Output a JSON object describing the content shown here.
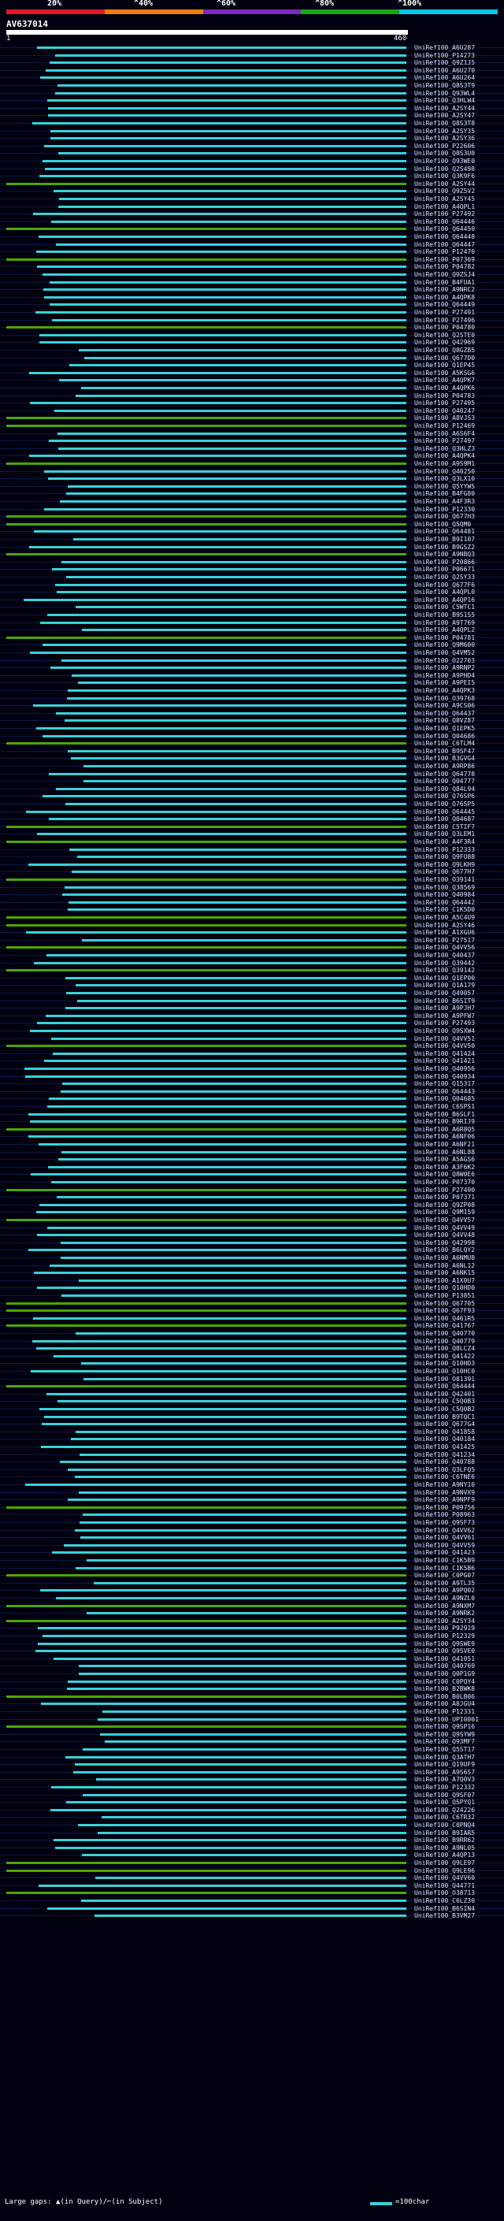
{
  "header": {
    "percent_labels": [
      "20%",
      "^40%",
      "^60%",
      "^80%",
      "^100%"
    ],
    "query_id": "AV637014",
    "range_start": "1",
    "range_end": "460"
  },
  "colors": {
    "identity_bands": [
      "#e0182a",
      "#f07a10",
      "#7a2bb8",
      "#1aa61a",
      "#00c8e6"
    ],
    "high_identity": "#39d1d9",
    "medium_identity": "#4aa800",
    "low_identity": "#7a7a7a",
    "query_bar": "#ffffff"
  },
  "hits": [
    "UniRef100_A6U287",
    "UniRef100_P14273",
    "UniRef100_Q9Z1J5",
    "UniRef100_A6U270",
    "UniRef100_A6U264",
    "UniRef100_Q8S3T9",
    "UniRef100_Q93WL4",
    "UniRef100_Q3HLW4",
    "UniRef100_A2SY44",
    "UniRef100_A2SY47",
    "UniRef100_Q8S3T8",
    "UniRef100_A2SY35",
    "UniRef100_A2SY36",
    "UniRef100_P22606",
    "UniRef100_Q8S3U0",
    "UniRef100_Q93WE0",
    "UniRef100_Q2S498",
    "UniRef100_Q3K9F6",
    "UniRef100_A2SY44",
    "UniRef100_Q9Z5V2",
    "UniRef100_A2SY45",
    "UniRef100_A4QPL1",
    "UniRef100_P27492",
    "UniRef100_Q64446",
    "UniRef100_Q64450",
    "UniRef100_Q64448",
    "UniRef100_Q64447",
    "UniRef100_P12470",
    "UniRef100_P07369",
    "UniRef100_P04782",
    "UniRef100_Q9ZSJ4",
    "UniRef100_B4FUA1",
    "UniRef100_A9NRC2",
    "UniRef100_A4QPK8",
    "UniRef100_Q64449",
    "UniRef100_P27491",
    "UniRef100_P27496",
    "UniRef100_P04780",
    "UniRef100_Q2STE0",
    "UniRef100_Q42969",
    "UniRef100_Q8GZB5",
    "UniRef100_Q677D0",
    "UniRef100_Q1EP45",
    "UniRef100_A5KSG6",
    "UniRef100_A4QPK7",
    "UniRef100_A4QPK6",
    "UniRef100_P04783",
    "UniRef100_P27495",
    "UniRef100_Q40247",
    "UniRef100_A8VJS3",
    "UniRef100_P12469",
    "UniRef100_A6S6F4",
    "UniRef100_P27497",
    "UniRef100_Q3HLZ3",
    "UniRef100_A4QPK4",
    "UniRef100_A9S9M1",
    "UniRef100_Q40250",
    "UniRef100_Q3LX10",
    "UniRef100_Q5YYW5",
    "UniRef100_B4FG80",
    "UniRef100_A4F3R3",
    "UniRef100_P12330",
    "UniRef100_Q677H3",
    "UniRef100_Q5QM0",
    "UniRef100_Q64481",
    "UniRef100_B9I107",
    "UniRef100_B9GSZ2",
    "UniRef100_A9NBQ3",
    "UniRef100_P20866",
    "UniRef100_P06671",
    "UniRef100_Q2SY33",
    "UniRef100_Q677F6",
    "UniRef100_A4QPL0",
    "UniRef100_A4QP16",
    "UniRef100_C5WTC1",
    "UniRef100_B9S155",
    "UniRef100_A9T769",
    "UniRef100_A4QPL2",
    "UniRef100_P04781",
    "UniRef100_Q9M600",
    "UniRef100_Q4VM52",
    "UniRef100_O22703",
    "UniRef100_A9RNP2",
    "UniRef100_A9PHD4",
    "UniRef100_A9PEI5",
    "UniRef100_A4QPK3",
    "UniRef100_O39768",
    "UniRef100_A9CS06",
    "UniRef100_Q64437",
    "UniRef100_Q8VZ87",
    "UniRef100_Q1EPK5",
    "UniRef100_Q04686",
    "UniRef100_C6TLM4",
    "UniRef100_B9SF47",
    "UniRef100_B3GVG4",
    "UniRef100_A9RP86",
    "UniRef100_Q64778",
    "UniRef100_Q04777",
    "UniRef100_Q84L94",
    "UniRef100_Q76SP6",
    "UniRef100_Q76SP5",
    "UniRef100_Q64445",
    "UniRef100_Q04687",
    "UniRef100_C5TIF7",
    "UniRef100_Q3LEM1",
    "UniRef100_A4F3R4",
    "UniRef100_P12333",
    "UniRef100_Q9FU88",
    "UniRef100_Q9LKH9",
    "UniRef100_Q677H7",
    "UniRef100_O39141",
    "UniRef100_Q38569",
    "UniRef100_Q40984",
    "UniRef100_Q64442",
    "UniRef100_C1K5D0",
    "UniRef100_A5C4U9",
    "UniRef100_A2SY46",
    "UniRef100_A1XGU6",
    "UniRef100_P27517",
    "UniRef100_Q4VV56",
    "UniRef100_Q40437",
    "UniRef100_Q39442",
    "UniRef100_Q39142",
    "UniRef100_Q1EP00",
    "UniRef100_Q1A179",
    "UniRef100_Q49057",
    "UniRef100_B6SIT9",
    "UniRef100_A9PJH7",
    "UniRef100_A9PFW7",
    "UniRef100_P27493",
    "UniRef100_Q9SXW4",
    "UniRef100_Q4VV51",
    "UniRef100_Q4VV50",
    "UniRef100_Q41424",
    "UniRef100_Q41421",
    "UniRef100_Q40956",
    "UniRef100_Q40934",
    "UniRef100_Q15317",
    "UniRef100_Q64443",
    "UniRef100_Q04685",
    "UniRef100_C6SPS1",
    "UniRef100_B6SLF1",
    "UniRef100_B9RIJ9",
    "UniRef100_A6R8Q5",
    "UniRef100_A6NF06",
    "UniRef100_A6NF21",
    "UniRef100_A6NL88",
    "UniRef100_A5AGS6",
    "UniRef100_A3F6K2",
    "UniRef100_Q8W0E6",
    "UniRef100_P07370",
    "UniRef100_P27490",
    "UniRef100_P07371",
    "UniRef100_Q9ZP08",
    "UniRef100_Q9M159",
    "UniRef100_Q4VV57",
    "UniRef100_Q4VV49",
    "UniRef100_Q4VV48",
    "UniRef100_Q42998",
    "UniRef100_B6LQY2",
    "UniRef100_A6NMU8",
    "UniRef100_A6NL12",
    "UniRef100_A6NK15",
    "UniRef100_A1X0U7",
    "UniRef100_Q10HD0",
    "UniRef100_P13851",
    "UniRef100_Q67705",
    "UniRef100_Q67F93",
    "UniRef100_Q461R5",
    "UniRef100_Q41767",
    "UniRef100_Q40770",
    "UniRef100_Q40779",
    "UniRef100_Q8LCZ4",
    "UniRef100_Q41422",
    "UniRef100_Q10HD3",
    "UniRef100_Q10HC0",
    "UniRef100_O81391",
    "UniRef100_Q64444",
    "UniRef100_Q42401",
    "UniRef100_C5Q0B3",
    "UniRef100_C5Q0B2",
    "UniRef100_B9TQC1",
    "UniRef100_Q677G4",
    "UniRef100_Q41858",
    "UniRef100_Q40184",
    "UniRef100_Q41425",
    "UniRef100_Q41234",
    "UniRef100_Q40788",
    "UniRef100_Q3LFQ5",
    "UniRef100_C6TNE6",
    "UniRef100_A9NY10",
    "UniRef100_A9NVX9",
    "UniRef100_A9NPF9",
    "UniRef100_P09756",
    "UniRef100_P08963",
    "UniRef100_Q9SF73",
    "UniRef100_Q4VV62",
    "UniRef100_Q4VV61",
    "UniRef100_Q4VV59",
    "UniRef100_Q41423",
    "UniRef100_C1K5B9",
    "UniRef100_C1K5B6",
    "UniRef100_C0PG07",
    "UniRef100_A9TL35",
    "UniRef100_A9PQ02",
    "UniRef100_A9NZL0",
    "UniRef100_A9NXM7",
    "UniRef100_A9NRK2",
    "UniRef100_A2SY34",
    "UniRef100_P92919",
    "UniRef100_P12329",
    "UniRef100_Q9SWE9",
    "UniRef100_Q9SVE0",
    "UniRef100_Q41051",
    "UniRef100_Q40769",
    "UniRef100_Q0P1G9",
    "UniRef100_C0PQY4",
    "UniRef100_B2BWK8",
    "UniRef100_B0LB06",
    "UniRef100_A8JGU4",
    "UniRef100_P12331",
    "UniRef100_UPI0001",
    "UniRef100_Q9SP16",
    "UniRef100_Q9SYW9",
    "UniRef100_Q93MF7",
    "UniRef100_Q5ST17",
    "UniRef100_Q3ATH7",
    "UniRef100_Q19UF9",
    "UniRef100_A9S6S7",
    "UniRef100_A7Q0V3",
    "UniRef100_P12332",
    "UniRef100_Q9SF07",
    "UniRef100_Q5PYQ1",
    "UniRef100_Q24226",
    "UniRef100_C6TR32",
    "UniRef100_C0PNQ4",
    "UniRef100_B9IAR5",
    "UniRef100_B9RR62",
    "UniRef100_A9NL05",
    "UniRef100_A4QP13",
    "UniRef100_Q9LE97",
    "UniRef100_Q9LE96",
    "UniRef100_Q4VV60",
    "UniRef100_Q44771",
    "UniRef100_O38713",
    "UniRef100_C6LZ30",
    "UniRef100_B6SIN4",
    "UniRef100_B3VM27"
  ],
  "legend": {
    "gaps_text": "Large gaps: ▲(in Query)/⌐(in Subject)",
    "scale_text": "=100char"
  }
}
